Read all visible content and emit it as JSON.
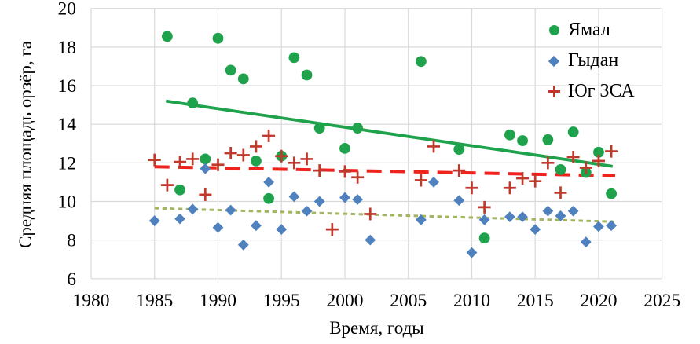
{
  "chart_data": {
    "type": "scatter",
    "title": "",
    "xlabel": "Время, годы",
    "ylabel": "Средняя площадь орзёр, га",
    "xlim": [
      1980,
      2025
    ],
    "ylim": [
      6,
      20
    ],
    "xticks": [
      1980,
      1985,
      1990,
      1995,
      2000,
      2005,
      2010,
      2015,
      2020,
      2025
    ],
    "yticks": [
      6,
      8,
      10,
      12,
      14,
      16,
      18,
      20
    ],
    "grid": true,
    "grid_color": "#d9d9d9",
    "legend_position": "top-right-inside",
    "series": [
      {
        "name": "Ямал",
        "marker": "circle",
        "color": "#1ea24b",
        "points": [
          [
            1986,
            18.55
          ],
          [
            1987,
            10.6
          ],
          [
            1988,
            15.1
          ],
          [
            1989,
            12.2
          ],
          [
            1990,
            18.45
          ],
          [
            1991,
            16.8
          ],
          [
            1992,
            16.35
          ],
          [
            1993,
            12.1
          ],
          [
            1994,
            10.15
          ],
          [
            1995,
            12.35
          ],
          [
            1996,
            17.45
          ],
          [
            1997,
            16.55
          ],
          [
            1998,
            13.8
          ],
          [
            2000,
            12.75
          ],
          [
            2001,
            13.8
          ],
          [
            2006,
            17.25
          ],
          [
            2009,
            12.7
          ],
          [
            2011,
            8.1
          ],
          [
            2013,
            13.45
          ],
          [
            2014,
            13.15
          ],
          [
            2016,
            13.2
          ],
          [
            2017,
            11.65
          ],
          [
            2018,
            13.6
          ],
          [
            2019,
            11.5
          ],
          [
            2020,
            12.55
          ],
          [
            2021,
            10.4
          ]
        ]
      },
      {
        "name": "Гыдан",
        "marker": "diamond",
        "color": "#4e81bd",
        "points": [
          [
            1985,
            9.0
          ],
          [
            1987,
            9.1
          ],
          [
            1988,
            9.6
          ],
          [
            1989,
            11.7
          ],
          [
            1990,
            8.65
          ],
          [
            1991,
            9.55
          ],
          [
            1992,
            7.75
          ],
          [
            1993,
            8.75
          ],
          [
            1994,
            11.0
          ],
          [
            1995,
            8.55
          ],
          [
            1996,
            10.25
          ],
          [
            1997,
            9.5
          ],
          [
            1998,
            10.0
          ],
          [
            2000,
            10.2
          ],
          [
            2001,
            10.1
          ],
          [
            2002,
            8.0
          ],
          [
            2006,
            9.05
          ],
          [
            2007,
            11.0
          ],
          [
            2009,
            10.05
          ],
          [
            2010,
            7.35
          ],
          [
            2011,
            9.05
          ],
          [
            2013,
            9.2
          ],
          [
            2014,
            9.2
          ],
          [
            2015,
            8.55
          ],
          [
            2016,
            9.5
          ],
          [
            2017,
            9.25
          ],
          [
            2018,
            9.5
          ],
          [
            2019,
            7.9
          ],
          [
            2020,
            8.7
          ],
          [
            2021,
            8.75
          ]
        ]
      },
      {
        "name": "Юг ЗСА",
        "marker": "plus",
        "color": "#c0392b",
        "points": [
          [
            1985,
            12.15
          ],
          [
            1986,
            10.85
          ],
          [
            1987,
            12.05
          ],
          [
            1988,
            12.2
          ],
          [
            1989,
            10.35
          ],
          [
            1990,
            11.9
          ],
          [
            1991,
            12.5
          ],
          [
            1992,
            12.4
          ],
          [
            1993,
            12.85
          ],
          [
            1994,
            13.4
          ],
          [
            1995,
            12.35
          ],
          [
            1996,
            12.0
          ],
          [
            1997,
            12.2
          ],
          [
            1998,
            11.6
          ],
          [
            1999,
            8.55
          ],
          [
            2000,
            11.55
          ],
          [
            2001,
            11.25
          ],
          [
            2002,
            9.35
          ],
          [
            2006,
            11.1
          ],
          [
            2007,
            12.85
          ],
          [
            2009,
            11.6
          ],
          [
            2010,
            10.7
          ],
          [
            2011,
            9.7
          ],
          [
            2013,
            10.7
          ],
          [
            2014,
            11.2
          ],
          [
            2015,
            11.05
          ],
          [
            2016,
            12.0
          ],
          [
            2017,
            10.45
          ],
          [
            2018,
            12.3
          ],
          [
            2019,
            11.75
          ],
          [
            2020,
            12.1
          ],
          [
            2021,
            12.6
          ]
        ]
      }
    ],
    "trendlines": [
      {
        "series": "Ямал",
        "style": "solid",
        "color": "#1ea24b",
        "x1": 1985.9,
        "y1": 15.2,
        "x2": 2021.1,
        "y2": 11.82
      },
      {
        "series": "Юг ЗСА",
        "style": "dashed",
        "color": "#ef231c",
        "x1": 1985.0,
        "y1": 11.8,
        "x2": 2021.3,
        "y2": 11.33
      },
      {
        "series": "Гыдан",
        "style": "dotted",
        "color": "#a2b561",
        "x1": 1985.0,
        "y1": 9.65,
        "x2": 2021.3,
        "y2": 8.95
      }
    ]
  }
}
